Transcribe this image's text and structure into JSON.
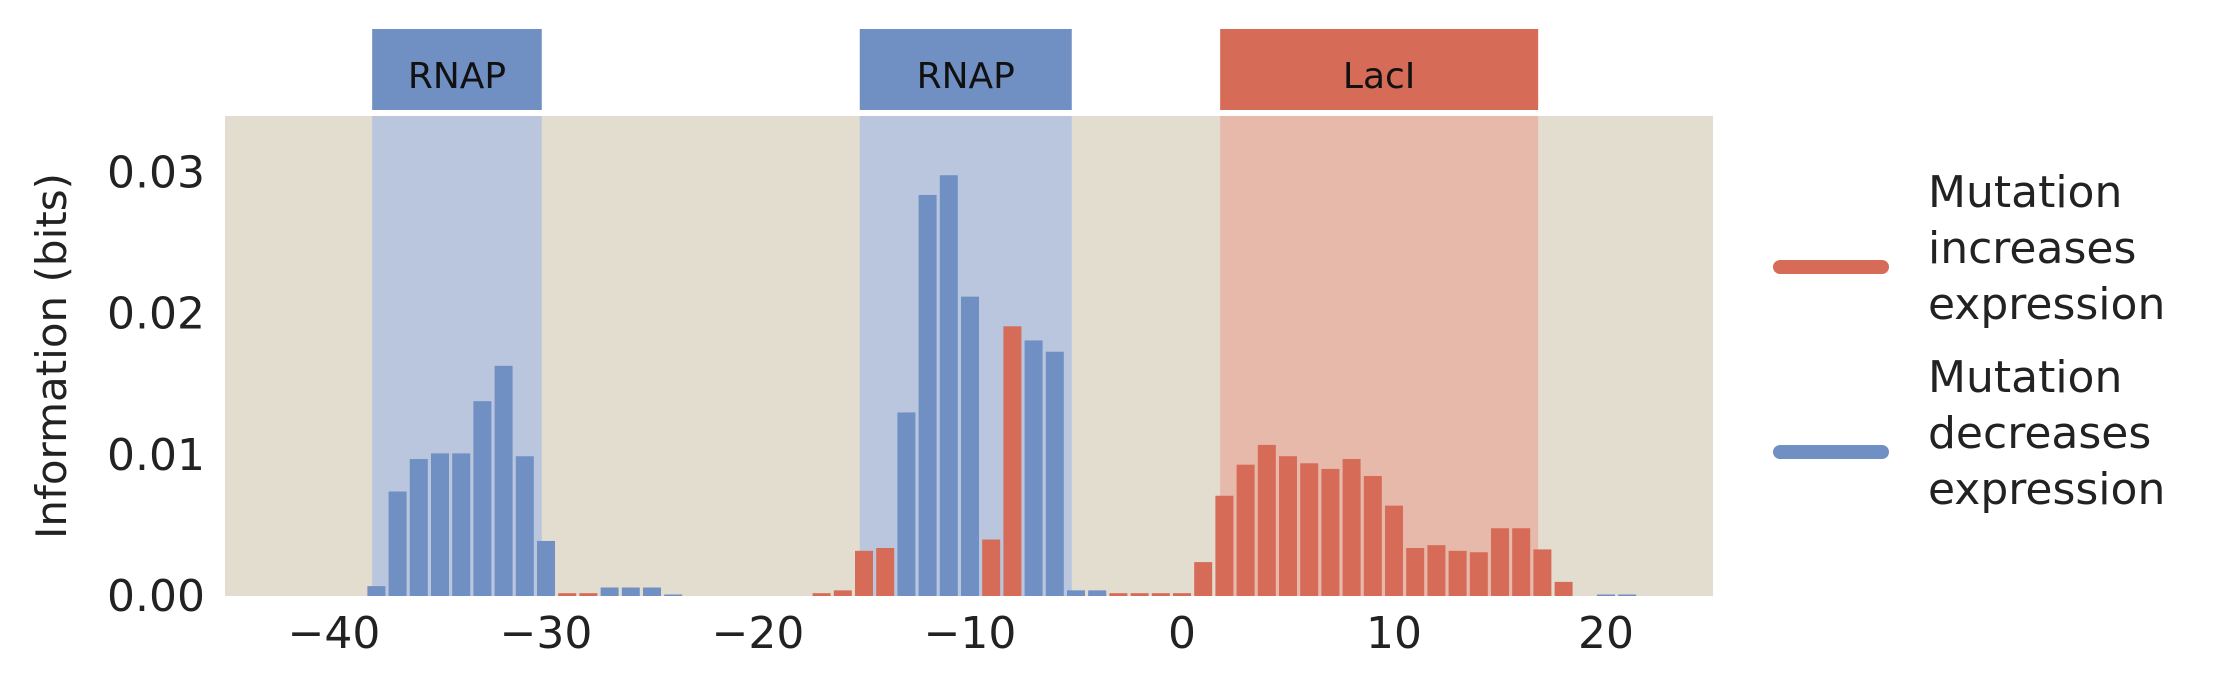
{
  "chart_data": {
    "type": "bar",
    "ylabel": "Information (bits)",
    "xlabel": "",
    "title": "",
    "xlim": [
      -45,
      25
    ],
    "ylim": [
      0,
      0.034
    ],
    "xticks": [
      -40,
      -30,
      -20,
      -10,
      0,
      10,
      20
    ],
    "yticks": [
      0.0,
      0.01,
      0.02,
      0.03
    ],
    "xtick_labels": [
      "−40",
      "−30",
      "−20",
      "−10",
      "0",
      "10",
      "20"
    ],
    "ytick_labels": [
      "0.00",
      "0.01",
      "0.02",
      "0.03"
    ],
    "grid": false,
    "legend_placement": "right",
    "colors": {
      "background": "#e3ddd0",
      "increase": "#d66b57",
      "decrease": "#7090c4",
      "rnap_region": "#b9c6de",
      "laci_region": "#e6b9aa",
      "text": "#222222"
    },
    "regions": [
      {
        "label": "RNAP",
        "start": -38.2,
        "end": -30.2,
        "kind": "decrease"
      },
      {
        "label": "RNAP",
        "start": -15.2,
        "end": -5.2,
        "kind": "decrease"
      },
      {
        "label": "LacI",
        "start": 1.8,
        "end": 16.8,
        "kind": "increase"
      }
    ],
    "series": [
      {
        "name": "Mutation increases expression",
        "color_key": "increase",
        "x": [
          -29,
          -28,
          -17,
          -16,
          -15,
          -14,
          -9,
          -8,
          -4,
          -3,
          -2,
          -1,
          0,
          1,
          2,
          3,
          4,
          5,
          6,
          7,
          8,
          9,
          10,
          11,
          12,
          13,
          14,
          15,
          16,
          17,
          18
        ],
        "values": [
          0.0002,
          0.0002,
          0.0002,
          0.0004,
          0.0032,
          0.0034,
          0.004,
          0.0191,
          0.0002,
          0.0002,
          0.0002,
          0.0002,
          0.0002,
          0.0024,
          0.0071,
          0.0093,
          0.0107,
          0.0099,
          0.0094,
          0.009,
          0.0097,
          0.0085,
          0.0064,
          0.0034,
          0.0036,
          0.0032,
          0.0031,
          0.0048,
          0.0048,
          0.0033,
          0.001
        ]
      },
      {
        "name": "Mutation decreases expression",
        "color_key": "decrease",
        "x": [
          -38,
          -37,
          -36,
          -35,
          -34,
          -33,
          -32,
          -31,
          -30,
          -27,
          -26,
          -25,
          -24,
          -13,
          -12,
          -11,
          -10,
          -7,
          -6,
          -5,
          -4,
          20,
          21
        ],
        "values": [
          0.0007,
          0.0074,
          0.0097,
          0.0101,
          0.0101,
          0.0138,
          0.0163,
          0.0099,
          0.0039,
          0.0006,
          0.0006,
          0.0006,
          0.0001,
          0.013,
          0.0284,
          0.0298,
          0.0212,
          0.0181,
          0.0173,
          0.0004,
          0.0004,
          0.0001,
          0.0001
        ]
      }
    ]
  },
  "legend": {
    "items": [
      {
        "lines": [
          "Mutation",
          "increases",
          "expression"
        ],
        "color_key": "increase"
      },
      {
        "lines": [
          "Mutation",
          "decreases",
          "expression"
        ],
        "color_key": "decrease"
      }
    ]
  }
}
